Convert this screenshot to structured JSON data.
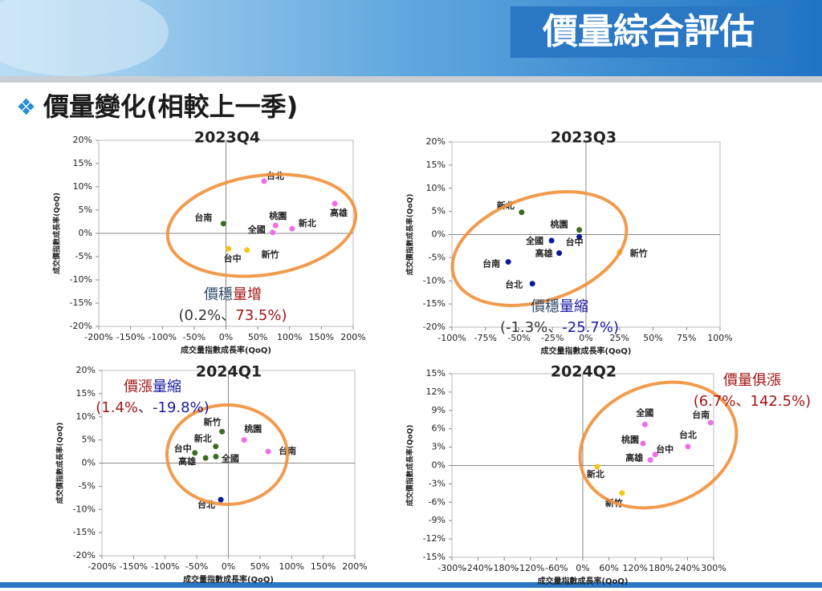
{
  "header": {
    "title": "價量綜合評估"
  },
  "section_title": "價量變化(相較上一季)",
  "chart_data": [
    {
      "type": "scatter",
      "title": "2023Q4",
      "x_label": "成交量指數成長率(QoQ)",
      "y_label": "成交價指數成長率(QoQ)",
      "categories": [
        "台北",
        "高雄",
        "新北",
        "桃園",
        "全國",
        "台南",
        "台中",
        "新竹"
      ],
      "x": [
        60,
        171,
        104,
        78,
        73.5,
        -4,
        4,
        33
      ],
      "values": [
        11.2,
        6.4,
        1.0,
        1.7,
        0.2,
        2.1,
        -3.3,
        -3.6
      ],
      "colors": [
        "#ee6fe8",
        "#ee6fe8",
        "#ee6fe8",
        "#ee6fe8",
        "#ee6fe8",
        "#3b6b1c",
        "#f5c518",
        "#f5c518"
      ],
      "xlim": [
        -200,
        200
      ],
      "xticks": [
        {
          "value": -200,
          "label": "-200%"
        },
        {
          "value": -150,
          "label": "-150%"
        },
        {
          "value": -100,
          "label": "-100%"
        },
        {
          "value": -50,
          "label": "-50%"
        },
        {
          "value": 0,
          "label": "0%"
        },
        {
          "value": 50,
          "label": "50%"
        },
        {
          "value": 100,
          "label": "100%"
        },
        {
          "value": 150,
          "label": "150%"
        },
        {
          "value": 200,
          "label": "200%"
        }
      ],
      "ylim": [
        -20,
        20
      ],
      "yticks": [
        {
          "value": -20,
          "label": "-20%"
        },
        {
          "value": -15,
          "label": "-15%"
        },
        {
          "value": -10,
          "label": "-10%"
        },
        {
          "value": -5,
          "label": "-5%"
        },
        {
          "value": 0,
          "label": "0%"
        },
        {
          "value": 5,
          "label": "5%"
        },
        {
          "value": 10,
          "label": "10%"
        },
        {
          "value": 15,
          "label": "15%"
        },
        {
          "value": 20,
          "label": "20%"
        }
      ],
      "annotation": [
        [
          {
            "text": "價穩",
            "color": "#2e4a6b"
          },
          {
            "text": "量增",
            "color": "#a31515"
          }
        ],
        [
          {
            "text": "(0.2%、",
            "color": "#333333"
          },
          {
            "text": "73.5%)",
            "color": "#a31515"
          }
        ]
      ]
    },
    {
      "type": "scatter",
      "title": "2023Q3",
      "x_label": "成交量指數成長率(QoQ)",
      "y_label": "成交價指數成長率(QoQ)",
      "categories": [
        "新北",
        "桃園",
        "台中",
        "全國",
        "高雄",
        "台南",
        "台北",
        "新竹"
      ],
      "x": [
        -48,
        -5,
        -5,
        -25.7,
        -20,
        -58,
        -40,
        25
      ],
      "values": [
        4.8,
        1.0,
        -0.5,
        -1.3,
        -4.0,
        -5.9,
        -10.6,
        -3.8
      ],
      "colors": [
        "#3b6b1c",
        "#3b6b1c",
        "#0a1a9a",
        "#0a1a9a",
        "#0a1a9a",
        "#0a1a9a",
        "#0a1a9a",
        "#f5c518"
      ],
      "xlim": [
        -100,
        100
      ],
      "xticks": [
        {
          "value": -100,
          "label": "-100%"
        },
        {
          "value": -75,
          "label": "-75%"
        },
        {
          "value": -50,
          "label": "-50%"
        },
        {
          "value": -25,
          "label": "-25%"
        },
        {
          "value": 0,
          "label": "0%"
        },
        {
          "value": 25,
          "label": "25%"
        },
        {
          "value": 50,
          "label": "50%"
        },
        {
          "value": 75,
          "label": "75%"
        },
        {
          "value": 100,
          "label": "100%"
        }
      ],
      "ylim": [
        -20,
        20
      ],
      "yticks": [
        {
          "value": -20,
          "label": "-20%"
        },
        {
          "value": -15,
          "label": "-15%"
        },
        {
          "value": -10,
          "label": "-10%"
        },
        {
          "value": -5,
          "label": "-5%"
        },
        {
          "value": 0,
          "label": "0%"
        },
        {
          "value": 5,
          "label": "5%"
        },
        {
          "value": 10,
          "label": "10%"
        },
        {
          "value": 15,
          "label": "15%"
        },
        {
          "value": 20,
          "label": "20%"
        }
      ],
      "annotation": [
        [
          {
            "text": "價穩",
            "color": "#2e4a6b"
          },
          {
            "text": "量縮",
            "color": "#1a1aa0"
          }
        ],
        [
          {
            "text": "(-1.3%、",
            "color": "#333333"
          },
          {
            "text": "-25.7%)",
            "color": "#1a1aa0"
          }
        ]
      ]
    },
    {
      "type": "scatter",
      "title": "2024Q1",
      "x_label": "成交量指數成長率(QoQ)",
      "y_label": "成交價指數成長率(QoQ)",
      "categories": [
        "新竹",
        "桃園",
        "新北",
        "台南",
        "台中",
        "高雄",
        "全國",
        "台北"
      ],
      "x": [
        -10,
        25,
        -20,
        63,
        -53,
        -36,
        -19.8,
        -12
      ],
      "values": [
        6.8,
        5.0,
        3.6,
        2.5,
        2.2,
        1.1,
        1.4,
        -7.9
      ],
      "colors": [
        "#3b6b1c",
        "#ee6fe8",
        "#3b6b1c",
        "#ee6fe8",
        "#3b6b1c",
        "#3b6b1c",
        "#3b6b1c",
        "#0a1a9a"
      ],
      "xlim": [
        -200,
        200
      ],
      "xticks": [
        {
          "value": -200,
          "label": "-200%"
        },
        {
          "value": -150,
          "label": "-150%"
        },
        {
          "value": -100,
          "label": "-100%"
        },
        {
          "value": -50,
          "label": "-50%"
        },
        {
          "value": 0,
          "label": "0%"
        },
        {
          "value": 50,
          "label": "50%"
        },
        {
          "value": 100,
          "label": "100%"
        },
        {
          "value": 150,
          "label": "150%"
        },
        {
          "value": 200,
          "label": "200%"
        }
      ],
      "ylim": [
        -20,
        20
      ],
      "yticks": [
        {
          "value": -20,
          "label": "-20%"
        },
        {
          "value": -15,
          "label": "-15%"
        },
        {
          "value": -10,
          "label": "-10%"
        },
        {
          "value": -5,
          "label": "-5%"
        },
        {
          "value": 0,
          "label": "0%"
        },
        {
          "value": 5,
          "label": "5%"
        },
        {
          "value": 10,
          "label": "10%"
        },
        {
          "value": 15,
          "label": "15%"
        },
        {
          "value": 20,
          "label": "20%"
        }
      ],
      "annotation": [
        [
          {
            "text": "價漲",
            "color": "#a31515"
          },
          {
            "text": "量縮",
            "color": "#1a1aa0"
          }
        ],
        [
          {
            "text": "(1.4%",
            "color": "#a31515"
          },
          {
            "text": "、",
            "color": "#333333"
          },
          {
            "text": "-19.8%)",
            "color": "#1a1aa0"
          }
        ]
      ]
    },
    {
      "type": "scatter",
      "title": "2024Q2",
      "x_label": "成交量指數成長率(QoQ)",
      "y_label": "成交價指數成長率(QoQ)",
      "categories": [
        "台南",
        "全國",
        "台北",
        "桃園",
        "台中",
        "高雄",
        "新北",
        "新竹"
      ],
      "x": [
        293,
        142.5,
        241,
        138,
        166,
        155,
        33,
        90
      ],
      "values": [
        7.0,
        6.7,
        3.1,
        3.6,
        1.8,
        0.9,
        -0.2,
        -4.5
      ],
      "colors": [
        "#ee6fe8",
        "#ee6fe8",
        "#ee6fe8",
        "#ee6fe8",
        "#ee6fe8",
        "#ee6fe8",
        "#f5c518",
        "#f5c518"
      ],
      "xlim": [
        -300,
        300
      ],
      "xticks": [
        {
          "value": -300,
          "label": "-300%"
        },
        {
          "value": -240,
          "label": "-240%"
        },
        {
          "value": -180,
          "label": "-180%"
        },
        {
          "value": -120,
          "label": "-120%"
        },
        {
          "value": -60,
          "label": "-60%"
        },
        {
          "value": 0,
          "label": "0%"
        },
        {
          "value": 60,
          "label": "60%"
        },
        {
          "value": 120,
          "label": "120%"
        },
        {
          "value": 180,
          "label": "180%"
        },
        {
          "value": 240,
          "label": "240%"
        },
        {
          "value": 300,
          "label": "300%"
        }
      ],
      "ylim": [
        -15,
        15
      ],
      "yticks": [
        {
          "value": -15,
          "label": "-15%"
        },
        {
          "value": -12,
          "label": "-12%"
        },
        {
          "value": -9,
          "label": "-9%"
        },
        {
          "value": -6,
          "label": "-6%"
        },
        {
          "value": -3,
          "label": "-3%"
        },
        {
          "value": 0,
          "label": "0%"
        },
        {
          "value": 3,
          "label": "3%"
        },
        {
          "value": 6,
          "label": "6%"
        },
        {
          "value": 9,
          "label": "9%"
        },
        {
          "value": 12,
          "label": "12%"
        },
        {
          "value": 15,
          "label": "15%"
        }
      ],
      "annotation": [
        [
          {
            "text": "價量俱漲",
            "color": "#a31515"
          }
        ],
        [
          {
            "text": "(6.7%、142.5%)",
            "color": "#a31515"
          }
        ]
      ]
    }
  ]
}
